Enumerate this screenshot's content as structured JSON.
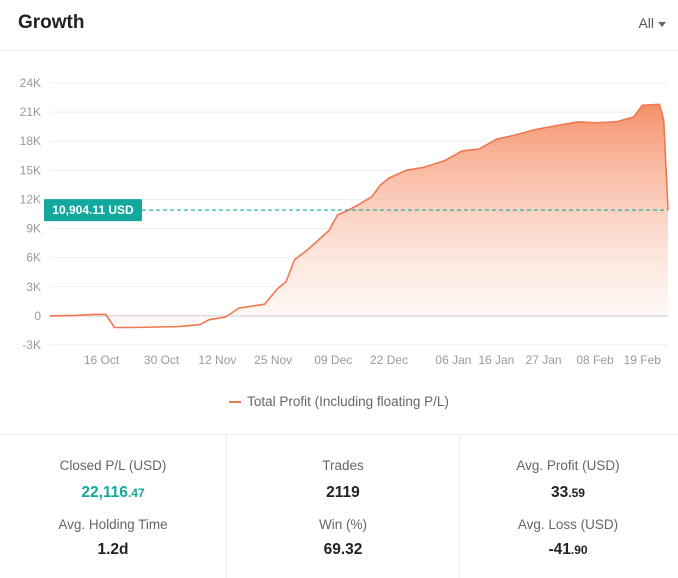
{
  "header": {
    "title": "Growth",
    "range_label": "All"
  },
  "chart_data": {
    "type": "area",
    "series": [
      {
        "name": "Total Profit (Including floating P/L)"
      }
    ],
    "y_ticks": [
      "24K",
      "21K",
      "18K",
      "15K",
      "12K",
      "9K",
      "6K",
      "3K",
      "0",
      "-3K"
    ],
    "y_tick_values": [
      24000,
      21000,
      18000,
      15000,
      12000,
      9000,
      6000,
      3000,
      0,
      -3000
    ],
    "x_tick_labels": [
      "16 Oct",
      "30 Oct",
      "12 Nov",
      "25 Nov",
      "09 Dec",
      "22 Dec",
      "06 Jan",
      "16 Jan",
      "27 Jan",
      "08 Feb",
      "19 Feb"
    ],
    "ylim": [
      -3000,
      24000
    ],
    "marker": {
      "label": "10,904.11 USD",
      "value": 10904.11
    },
    "points": [
      [
        "2023-10-04",
        0
      ],
      [
        "2023-10-10",
        50
      ],
      [
        "2023-10-14",
        150
      ],
      [
        "2023-10-17",
        150
      ],
      [
        "2023-10-19",
        -1200
      ],
      [
        "2023-10-23",
        -1200
      ],
      [
        "2023-10-29",
        -1150
      ],
      [
        "2023-11-03",
        -1100
      ],
      [
        "2023-11-08",
        -900
      ],
      [
        "2023-11-10",
        -400
      ],
      [
        "2023-11-14",
        -100
      ],
      [
        "2023-11-17",
        800
      ],
      [
        "2023-11-20",
        1000
      ],
      [
        "2023-11-23",
        1200
      ],
      [
        "2023-11-26",
        2800
      ],
      [
        "2023-11-28",
        3500
      ],
      [
        "2023-11-30",
        5800
      ],
      [
        "2023-12-03",
        6800
      ],
      [
        "2023-12-05",
        7600
      ],
      [
        "2023-12-08",
        8800
      ],
      [
        "2023-12-10",
        10400
      ],
      [
        "2023-12-13",
        11000
      ],
      [
        "2023-12-15",
        11500
      ],
      [
        "2023-12-18",
        12300
      ],
      [
        "2023-12-20",
        13500
      ],
      [
        "2023-12-22",
        14200
      ],
      [
        "2023-12-26",
        15000
      ],
      [
        "2023-12-30",
        15300
      ],
      [
        "2024-01-04",
        16000
      ],
      [
        "2024-01-08",
        17000
      ],
      [
        "2024-01-12",
        17200
      ],
      [
        "2024-01-16",
        18200
      ],
      [
        "2024-01-20",
        18600
      ],
      [
        "2024-01-25",
        19200
      ],
      [
        "2024-01-30",
        19600
      ],
      [
        "2024-02-04",
        20000
      ],
      [
        "2024-02-08",
        19900
      ],
      [
        "2024-02-13",
        20000
      ],
      [
        "2024-02-17",
        20500
      ],
      [
        "2024-02-19",
        21700
      ],
      [
        "2024-02-23",
        21800
      ],
      [
        "2024-02-24",
        20200
      ],
      [
        "2024-02-25",
        10904.11
      ]
    ]
  },
  "legend": {
    "label": "Total Profit (Including floating P/L)"
  },
  "stats": {
    "closed_pl": {
      "label": "Closed P/L (USD)",
      "main": "22,116",
      "frac": ".47"
    },
    "trades": {
      "label": "Trades",
      "value": "2119"
    },
    "avg_profit": {
      "label": "Avg. Profit (USD)",
      "main": "33",
      "frac": ".59"
    },
    "avg_holding": {
      "label": "Avg. Holding Time",
      "value": "1.2d"
    },
    "win": {
      "label": "Win (%)",
      "value": "69.32"
    },
    "avg_loss": {
      "label": "Avg. Loss (USD)",
      "main": "-41",
      "frac": ".90"
    }
  },
  "colors": {
    "line": "#f07850",
    "accent": "#13a89e"
  }
}
